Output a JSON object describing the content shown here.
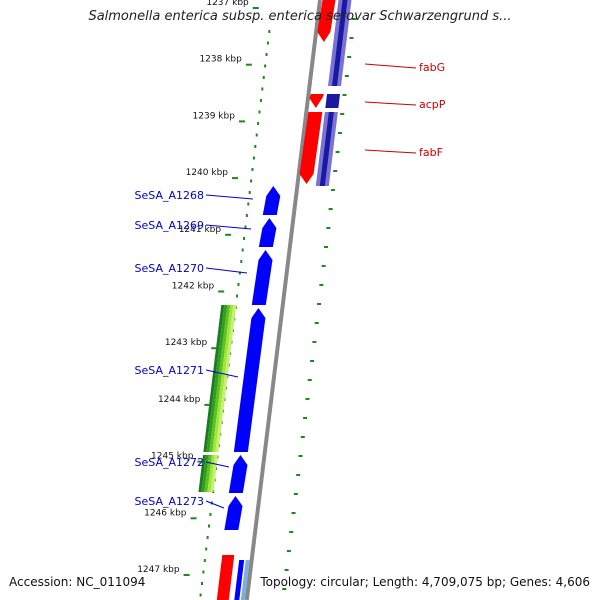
{
  "title": "Salmonella enterica subsp. enterica serovar Schwarzengrund s...",
  "accession": {
    "label": "Accession:",
    "value": "NC_011094"
  },
  "topology": {
    "topology_label": "Topology:",
    "topology_value": "circular",
    "length_label": "Length:",
    "length_value": "4,709,075 bp",
    "genes_label": "Genes:",
    "genes_value": "4,606"
  },
  "ticks": [
    "1237 kbp",
    "1238 kbp",
    "1239 kbp",
    "1240 kbp",
    "1241 kbp",
    "1242 kbp",
    "1243 kbp",
    "1244 kbp",
    "1245 kbp",
    "1246 kbp",
    "1247 kbp"
  ],
  "forward_genes": [
    "fabG",
    "acpP",
    "fabF"
  ],
  "reverse_genes": [
    "SeSA_A1268",
    "SeSA_A1269",
    "SeSA_A1270",
    "SeSA_A1271",
    "SeSA_A1272",
    "SeSA_A1273"
  ],
  "colors": {
    "forward_strand": "#ff0000",
    "forward_cds": "#1a1aa0",
    "reverse_strand": "#0000ff",
    "rrna_like": "#228b22",
    "backbone": "#888888",
    "tick_marks": "#1a8a1a",
    "forward_label": "#cc0000",
    "reverse_label": "#0000cc"
  }
}
